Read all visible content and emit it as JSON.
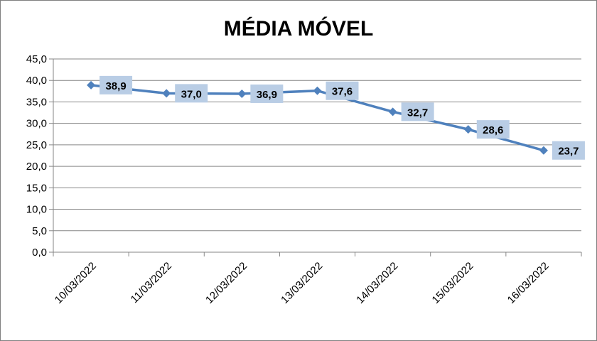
{
  "chart_data": {
    "type": "line",
    "title": "MÉDIA MÓVEL",
    "xlabel": "",
    "ylabel": "",
    "categories": [
      "10/03/2022",
      "11/03/2022",
      "12/03/2022",
      "13/03/2022",
      "14/03/2022",
      "15/03/2022",
      "16/03/2022"
    ],
    "series": [
      {
        "values": [
          38.9,
          37.0,
          36.9,
          37.6,
          32.7,
          28.6,
          23.7
        ],
        "labels": [
          "38,9",
          "37,0",
          "36,9",
          "37,6",
          "32,7",
          "28,6",
          "23,7"
        ],
        "color": "#4f81bd"
      }
    ],
    "yticks": [
      "0,0",
      "5,0",
      "10,0",
      "15,0",
      "20,0",
      "25,0",
      "30,0",
      "35,0",
      "40,0",
      "45,0"
    ],
    "ylim": [
      0,
      45
    ],
    "grid": true,
    "legend": "none",
    "label_box_color": "#b9cde5",
    "gridline_color": "#868686"
  }
}
